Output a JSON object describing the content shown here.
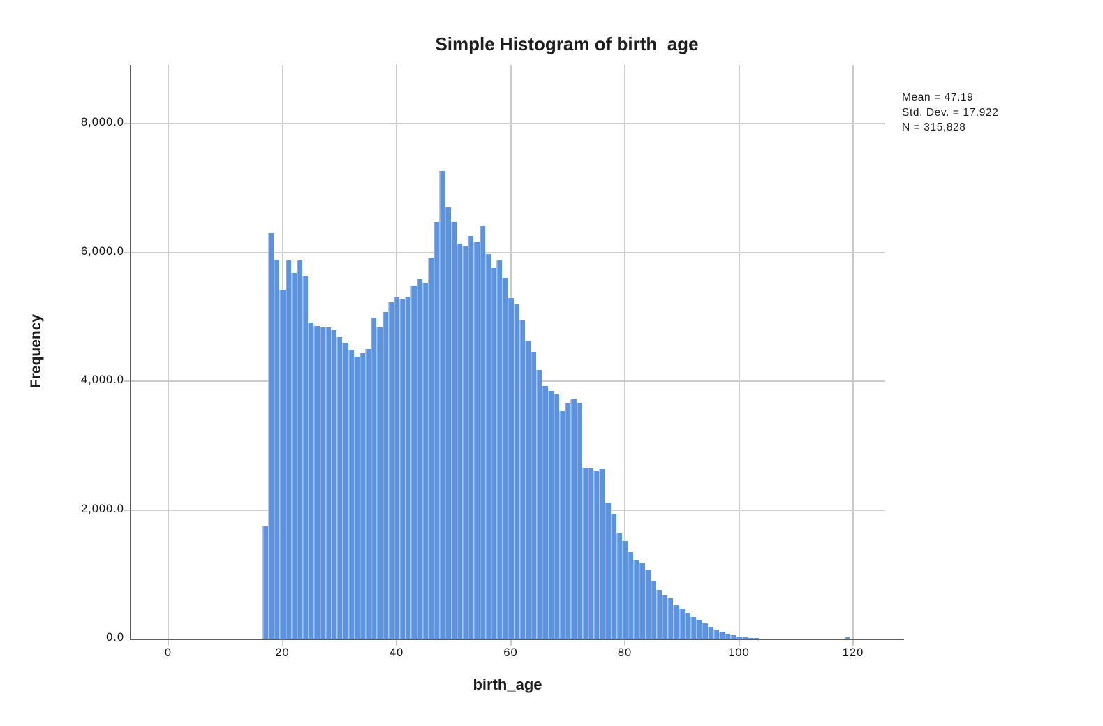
{
  "stats": {
    "mean_label": "Mean = 47.19",
    "std_dev_label": "Std. Dev. = 17.922",
    "n_label": "N = 315,828",
    "mean": 47.19,
    "std_dev": 17.922,
    "n": 315828
  },
  "chart_data": {
    "type": "bar",
    "subtype": "histogram",
    "title": "Simple Histogram of birth_age",
    "xlabel": "birth_age",
    "ylabel": "Frequency",
    "xlim": [
      -6.5,
      125.6
    ],
    "ylim": [
      0,
      8900
    ],
    "grid": true,
    "legend_position": "none",
    "bar_color": "#5c93e1",
    "bar_edge_color": "#a9c7f0",
    "grid_color": "#cbcbcb",
    "axis_color": "#5e5e5e",
    "bin_width": 1,
    "x_ticks": [
      {
        "value": 0,
        "label": "0"
      },
      {
        "value": 20,
        "label": "20"
      },
      {
        "value": 40,
        "label": "40"
      },
      {
        "value": 60,
        "label": "60"
      },
      {
        "value": 80,
        "label": "80"
      },
      {
        "value": 100,
        "label": "100"
      },
      {
        "value": 120,
        "label": "120"
      }
    ],
    "y_ticks": [
      {
        "value": 0,
        "label": "0.0"
      },
      {
        "value": 2000,
        "label": "2,000.0"
      },
      {
        "value": 4000,
        "label": "4,000.0"
      },
      {
        "value": 6000,
        "label": "6,000.0"
      },
      {
        "value": 8000,
        "label": "8,000.0"
      }
    ],
    "categories": [
      17,
      18,
      19,
      20,
      21,
      22,
      23,
      24,
      25,
      26,
      27,
      28,
      29,
      30,
      31,
      32,
      33,
      34,
      35,
      36,
      37,
      38,
      39,
      40,
      41,
      42,
      43,
      44,
      45,
      46,
      47,
      48,
      49,
      50,
      51,
      52,
      53,
      54,
      55,
      56,
      57,
      58,
      59,
      60,
      61,
      62,
      63,
      64,
      65,
      66,
      67,
      68,
      69,
      70,
      71,
      72,
      73,
      74,
      75,
      76,
      77,
      78,
      79,
      80,
      81,
      82,
      83,
      84,
      85,
      86,
      87,
      88,
      89,
      90,
      91,
      92,
      93,
      94,
      95,
      96,
      97,
      98,
      99,
      100,
      101,
      102,
      103,
      119
    ],
    "values": [
      1740,
      6300,
      5890,
      5420,
      5880,
      5680,
      5880,
      5630,
      4910,
      4860,
      4840,
      4830,
      4790,
      4680,
      4600,
      4490,
      4380,
      4430,
      4500,
      4980,
      4840,
      5070,
      5230,
      5300,
      5270,
      5310,
      5490,
      5580,
      5520,
      5920,
      6470,
      7260,
      6700,
      6470,
      6140,
      6090,
      6250,
      6160,
      6410,
      5970,
      5760,
      5870,
      5600,
      5290,
      5190,
      4940,
      4630,
      4450,
      4170,
      3920,
      3850,
      3790,
      3530,
      3650,
      3720,
      3660,
      2660,
      2640,
      2610,
      2630,
      2110,
      1940,
      1640,
      1520,
      1340,
      1230,
      1170,
      1070,
      900,
      760,
      670,
      630,
      520,
      470,
      400,
      340,
      290,
      235,
      180,
      145,
      110,
      80,
      55,
      35,
      22,
      14,
      8,
      20
    ]
  }
}
